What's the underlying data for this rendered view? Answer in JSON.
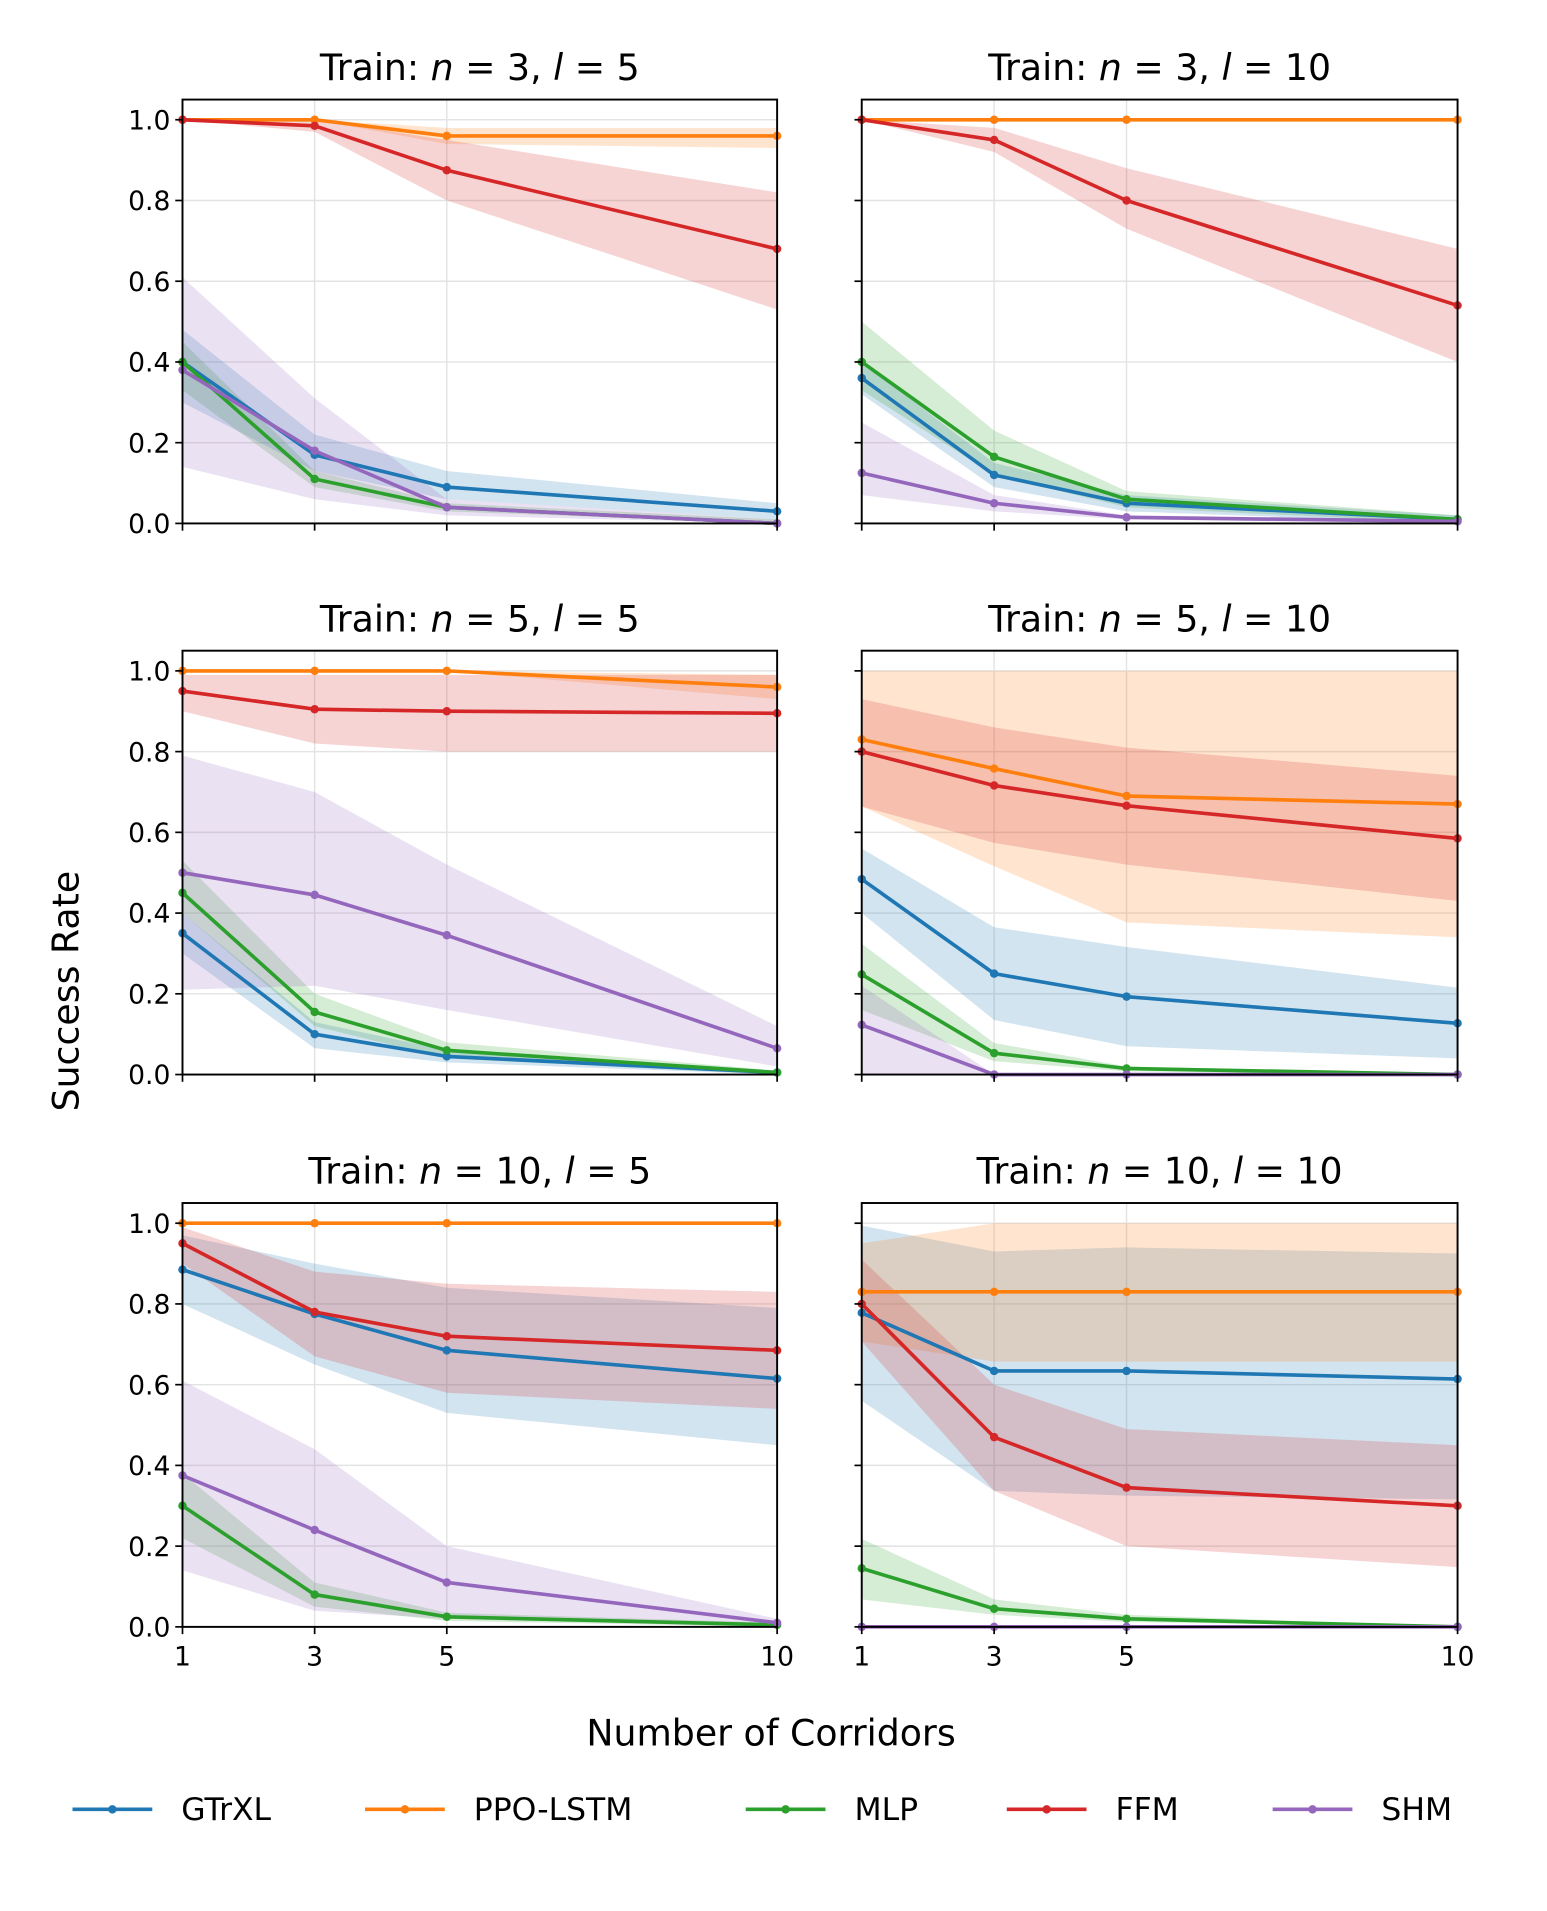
{
  "chart_data": {
    "type": "line",
    "ylabel": "Success Rate",
    "xlabel": "Number of Corridors",
    "x": [
      1,
      3,
      5,
      10
    ],
    "xticks": [
      "1",
      "3",
      "5",
      "10"
    ],
    "yticks": [
      "0.0",
      "0.2",
      "0.4",
      "0.6",
      "0.8",
      "1.0"
    ],
    "xlim": [
      1,
      10
    ],
    "ylim": [
      0,
      1.05
    ],
    "grid": true,
    "legend_position": "bottom",
    "colors": {
      "GTrXL": "#1f77b4",
      "PPO-LSTM": "#ff7f0e",
      "MLP": "#2ca02c",
      "FFM": "#d62728",
      "SHM": "#9467bd"
    },
    "legend": [
      "GTrXL",
      "PPO-LSTM",
      "MLP",
      "FFM",
      "SHM"
    ],
    "panels": [
      {
        "title": "Train: n = 3, l = 5",
        "series": [
          {
            "name": "GTrXL",
            "values": [
              0.4,
              0.17,
              0.09,
              0.03
            ],
            "lower": [
              0.3,
              0.13,
              0.06,
              0.01
            ],
            "upper": [
              0.48,
              0.22,
              0.13,
              0.05
            ]
          },
          {
            "name": "PPO-LSTM",
            "values": [
              1.0,
              1.0,
              0.96,
              0.96
            ],
            "lower": [
              1.0,
              1.0,
              0.94,
              0.93
            ],
            "upper": [
              1.0,
              1.0,
              0.98,
              0.98
            ]
          },
          {
            "name": "MLP",
            "values": [
              0.4,
              0.11,
              0.04,
              0.0
            ],
            "lower": [
              0.33,
              0.09,
              0.03,
              0.0
            ],
            "upper": [
              0.45,
              0.13,
              0.05,
              0.01
            ]
          },
          {
            "name": "FFM",
            "values": [
              1.0,
              0.985,
              0.875,
              0.68
            ],
            "lower": [
              1.0,
              0.97,
              0.8,
              0.53
            ],
            "upper": [
              1.0,
              1.0,
              0.95,
              0.82
            ]
          },
          {
            "name": "SHM",
            "values": [
              0.38,
              0.18,
              0.04,
              0.0
            ],
            "lower": [
              0.14,
              0.06,
              0.02,
              0.0
            ],
            "upper": [
              0.61,
              0.31,
              0.06,
              0.01
            ]
          }
        ]
      },
      {
        "title": "Train: n = 3, l = 10",
        "series": [
          {
            "name": "GTrXL",
            "values": [
              0.36,
              0.12,
              0.05,
              0.01
            ],
            "lower": [
              0.32,
              0.09,
              0.03,
              0.0
            ],
            "upper": [
              0.4,
              0.15,
              0.07,
              0.02
            ]
          },
          {
            "name": "PPO-LSTM",
            "values": [
              1.0,
              1.0,
              1.0,
              1.0
            ],
            "lower": [
              1.0,
              1.0,
              1.0,
              1.0
            ],
            "upper": [
              1.0,
              1.0,
              1.0,
              1.0
            ]
          },
          {
            "name": "MLP",
            "values": [
              0.4,
              0.165,
              0.06,
              0.01
            ],
            "lower": [
              0.33,
              0.12,
              0.04,
              0.0
            ],
            "upper": [
              0.5,
              0.23,
              0.08,
              0.02
            ]
          },
          {
            "name": "FFM",
            "values": [
              1.0,
              0.95,
              0.8,
              0.54
            ],
            "lower": [
              1.0,
              0.92,
              0.73,
              0.4
            ],
            "upper": [
              1.0,
              0.98,
              0.88,
              0.68
            ]
          },
          {
            "name": "SHM",
            "values": [
              0.125,
              0.05,
              0.015,
              0.005
            ],
            "lower": [
              0.07,
              0.03,
              0.01,
              0.0
            ],
            "upper": [
              0.25,
              0.07,
              0.02,
              0.01
            ]
          }
        ]
      },
      {
        "title": "Train: n = 5, l = 5",
        "series": [
          {
            "name": "GTrXL",
            "values": [
              0.35,
              0.1,
              0.045,
              0.005
            ],
            "lower": [
              0.3,
              0.065,
              0.03,
              0.0
            ],
            "upper": [
              0.4,
              0.13,
              0.06,
              0.01
            ]
          },
          {
            "name": "PPO-LSTM",
            "values": [
              1.0,
              1.0,
              1.0,
              0.96
            ],
            "lower": [
              1.0,
              1.0,
              1.0,
              0.93
            ],
            "upper": [
              1.0,
              1.0,
              1.0,
              0.99
            ]
          },
          {
            "name": "MLP",
            "values": [
              0.45,
              0.155,
              0.06,
              0.005
            ],
            "lower": [
              0.4,
              0.12,
              0.04,
              0.0
            ],
            "upper": [
              0.53,
              0.2,
              0.08,
              0.01
            ]
          },
          {
            "name": "FFM",
            "values": [
              0.95,
              0.905,
              0.9,
              0.895
            ],
            "lower": [
              0.9,
              0.82,
              0.8,
              0.8
            ],
            "upper": [
              0.99,
              0.99,
              0.99,
              0.99
            ]
          },
          {
            "name": "SHM",
            "values": [
              0.5,
              0.445,
              0.345,
              0.065
            ],
            "lower": [
              0.21,
              0.22,
              0.16,
              0.02
            ],
            "upper": [
              0.79,
              0.7,
              0.52,
              0.12
            ]
          }
        ]
      },
      {
        "title": "Train: n = 5, l = 10",
        "series": [
          {
            "name": "GTrXL",
            "values": [
              0.484,
              0.25,
              0.193,
              0.127
            ],
            "lower": [
              0.4,
              0.135,
              0.07,
              0.04
            ],
            "upper": [
              0.56,
              0.365,
              0.316,
              0.215
            ]
          },
          {
            "name": "PPO-LSTM",
            "values": [
              0.83,
              0.758,
              0.69,
              0.67
            ],
            "lower": [
              0.664,
              0.516,
              0.377,
              0.34
            ],
            "upper": [
              1.0,
              1.0,
              1.0,
              1.0
            ]
          },
          {
            "name": "MLP",
            "values": [
              0.248,
              0.053,
              0.015,
              0.0
            ],
            "lower": [
              0.16,
              0.033,
              0.008,
              0.0
            ],
            "upper": [
              0.324,
              0.078,
              0.02,
              0.002
            ]
          },
          {
            "name": "FFM",
            "values": [
              0.8,
              0.716,
              0.666,
              0.585
            ],
            "lower": [
              0.664,
              0.574,
              0.52,
              0.43
            ],
            "upper": [
              0.93,
              0.86,
              0.81,
              0.74
            ]
          },
          {
            "name": "SHM",
            "values": [
              0.123,
              0.0,
              0.0,
              0.0
            ],
            "lower": [
              0.0,
              0.0,
              0.0,
              0.0
            ],
            "upper": [
              0.22,
              0.0,
              0.0,
              0.0
            ]
          }
        ]
      },
      {
        "title": "Train: n = 10, l = 5",
        "series": [
          {
            "name": "GTrXL",
            "values": [
              0.885,
              0.775,
              0.685,
              0.615
            ],
            "lower": [
              0.8,
              0.65,
              0.53,
              0.45
            ],
            "upper": [
              0.97,
              0.9,
              0.84,
              0.79
            ]
          },
          {
            "name": "PPO-LSTM",
            "values": [
              1.0,
              1.0,
              1.0,
              1.0
            ],
            "lower": [
              1.0,
              1.0,
              1.0,
              1.0
            ],
            "upper": [
              1.0,
              1.0,
              1.0,
              1.0
            ]
          },
          {
            "name": "MLP",
            "values": [
              0.3,
              0.08,
              0.025,
              0.005
            ],
            "lower": [
              0.22,
              0.05,
              0.015,
              0.0
            ],
            "upper": [
              0.38,
              0.11,
              0.035,
              0.01
            ]
          },
          {
            "name": "FFM",
            "values": [
              0.95,
              0.78,
              0.72,
              0.685
            ],
            "lower": [
              0.9,
              0.67,
              0.58,
              0.54
            ],
            "upper": [
              0.99,
              0.88,
              0.85,
              0.83
            ]
          },
          {
            "name": "SHM",
            "values": [
              0.375,
              0.24,
              0.11,
              0.01
            ],
            "lower": [
              0.14,
              0.04,
              0.02,
              0.0
            ],
            "upper": [
              0.61,
              0.44,
              0.2,
              0.02
            ]
          }
        ]
      },
      {
        "title": "Train: n = 10, l = 10",
        "series": [
          {
            "name": "GTrXL",
            "values": [
              0.778,
              0.634,
              0.634,
              0.614
            ],
            "lower": [
              0.56,
              0.337,
              0.325,
              0.316
            ],
            "upper": [
              0.994,
              0.93,
              0.94,
              0.925
            ]
          },
          {
            "name": "PPO-LSTM",
            "values": [
              0.83,
              0.83,
              0.83,
              0.83
            ],
            "lower": [
              0.707,
              0.657,
              0.657,
              0.657
            ],
            "upper": [
              0.95,
              1.0,
              1.0,
              1.0
            ]
          },
          {
            "name": "MLP",
            "values": [
              0.145,
              0.045,
              0.02,
              0.0
            ],
            "lower": [
              0.068,
              0.03,
              0.012,
              0.0
            ],
            "upper": [
              0.218,
              0.068,
              0.03,
              0.0
            ]
          },
          {
            "name": "FFM",
            "values": [
              0.8,
              0.47,
              0.345,
              0.3
            ],
            "lower": [
              0.707,
              0.337,
              0.2,
              0.148
            ],
            "upper": [
              0.91,
              0.6,
              0.49,
              0.45
            ]
          },
          {
            "name": "SHM",
            "values": [
              0.0,
              0.0,
              0.0,
              0.0
            ],
            "lower": [
              0.0,
              0.0,
              0.0,
              0.0
            ],
            "upper": [
              0.0,
              0.0,
              0.0,
              0.0
            ]
          }
        ]
      }
    ]
  }
}
